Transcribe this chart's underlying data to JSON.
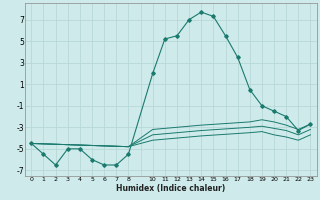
{
  "xlabel": "Humidex (Indice chaleur)",
  "bg_color": "#ceeaea",
  "grid_color": "#b8d8d8",
  "line_color": "#1a7a6e",
  "xlim": [
    -0.5,
    23.5
  ],
  "ylim": [
    -7.5,
    8.5
  ],
  "xtick_labels": [
    "0",
    "1",
    "2",
    "3",
    "4",
    "5",
    "6",
    "7",
    "8",
    "",
    "10",
    "11",
    "12",
    "13",
    "14",
    "15",
    "16",
    "17",
    "18",
    "19",
    "20",
    "21",
    "22",
    "23"
  ],
  "xtick_pos": [
    0,
    1,
    2,
    3,
    4,
    5,
    6,
    7,
    8,
    9,
    10,
    11,
    12,
    13,
    14,
    15,
    16,
    17,
    18,
    19,
    20,
    21,
    22,
    23
  ],
  "yticks": [
    -7,
    -5,
    -3,
    -1,
    1,
    3,
    5,
    7
  ],
  "main_x": [
    0,
    1,
    2,
    3,
    4,
    5,
    6,
    7,
    8,
    10,
    11,
    12,
    13,
    14,
    15,
    16,
    17,
    18,
    19,
    20,
    21,
    22,
    23
  ],
  "main_y": [
    -4.5,
    -5.5,
    -6.5,
    -5.0,
    -5.0,
    -6.0,
    -6.5,
    -6.5,
    -5.5,
    2.0,
    5.2,
    5.5,
    7.0,
    7.7,
    7.3,
    5.5,
    3.5,
    0.5,
    -1.0,
    -1.5,
    -2.0,
    -3.3,
    -2.7
  ],
  "line2_x": [
    0,
    8,
    10,
    14,
    18,
    19,
    20,
    21,
    22,
    23
  ],
  "line2_y": [
    -4.5,
    -4.8,
    -3.2,
    -2.8,
    -2.5,
    -2.3,
    -2.5,
    -2.8,
    -3.2,
    -2.7
  ],
  "line3_x": [
    0,
    8,
    10,
    14,
    18,
    19,
    20,
    21,
    22,
    23
  ],
  "line3_y": [
    -4.5,
    -4.8,
    -3.7,
    -3.3,
    -3.0,
    -2.9,
    -3.1,
    -3.3,
    -3.7,
    -3.2
  ],
  "line4_x": [
    0,
    8,
    10,
    14,
    18,
    19,
    20,
    21,
    22,
    23
  ],
  "line4_y": [
    -4.5,
    -4.8,
    -4.2,
    -3.8,
    -3.5,
    -3.4,
    -3.7,
    -3.9,
    -4.2,
    -3.7
  ]
}
